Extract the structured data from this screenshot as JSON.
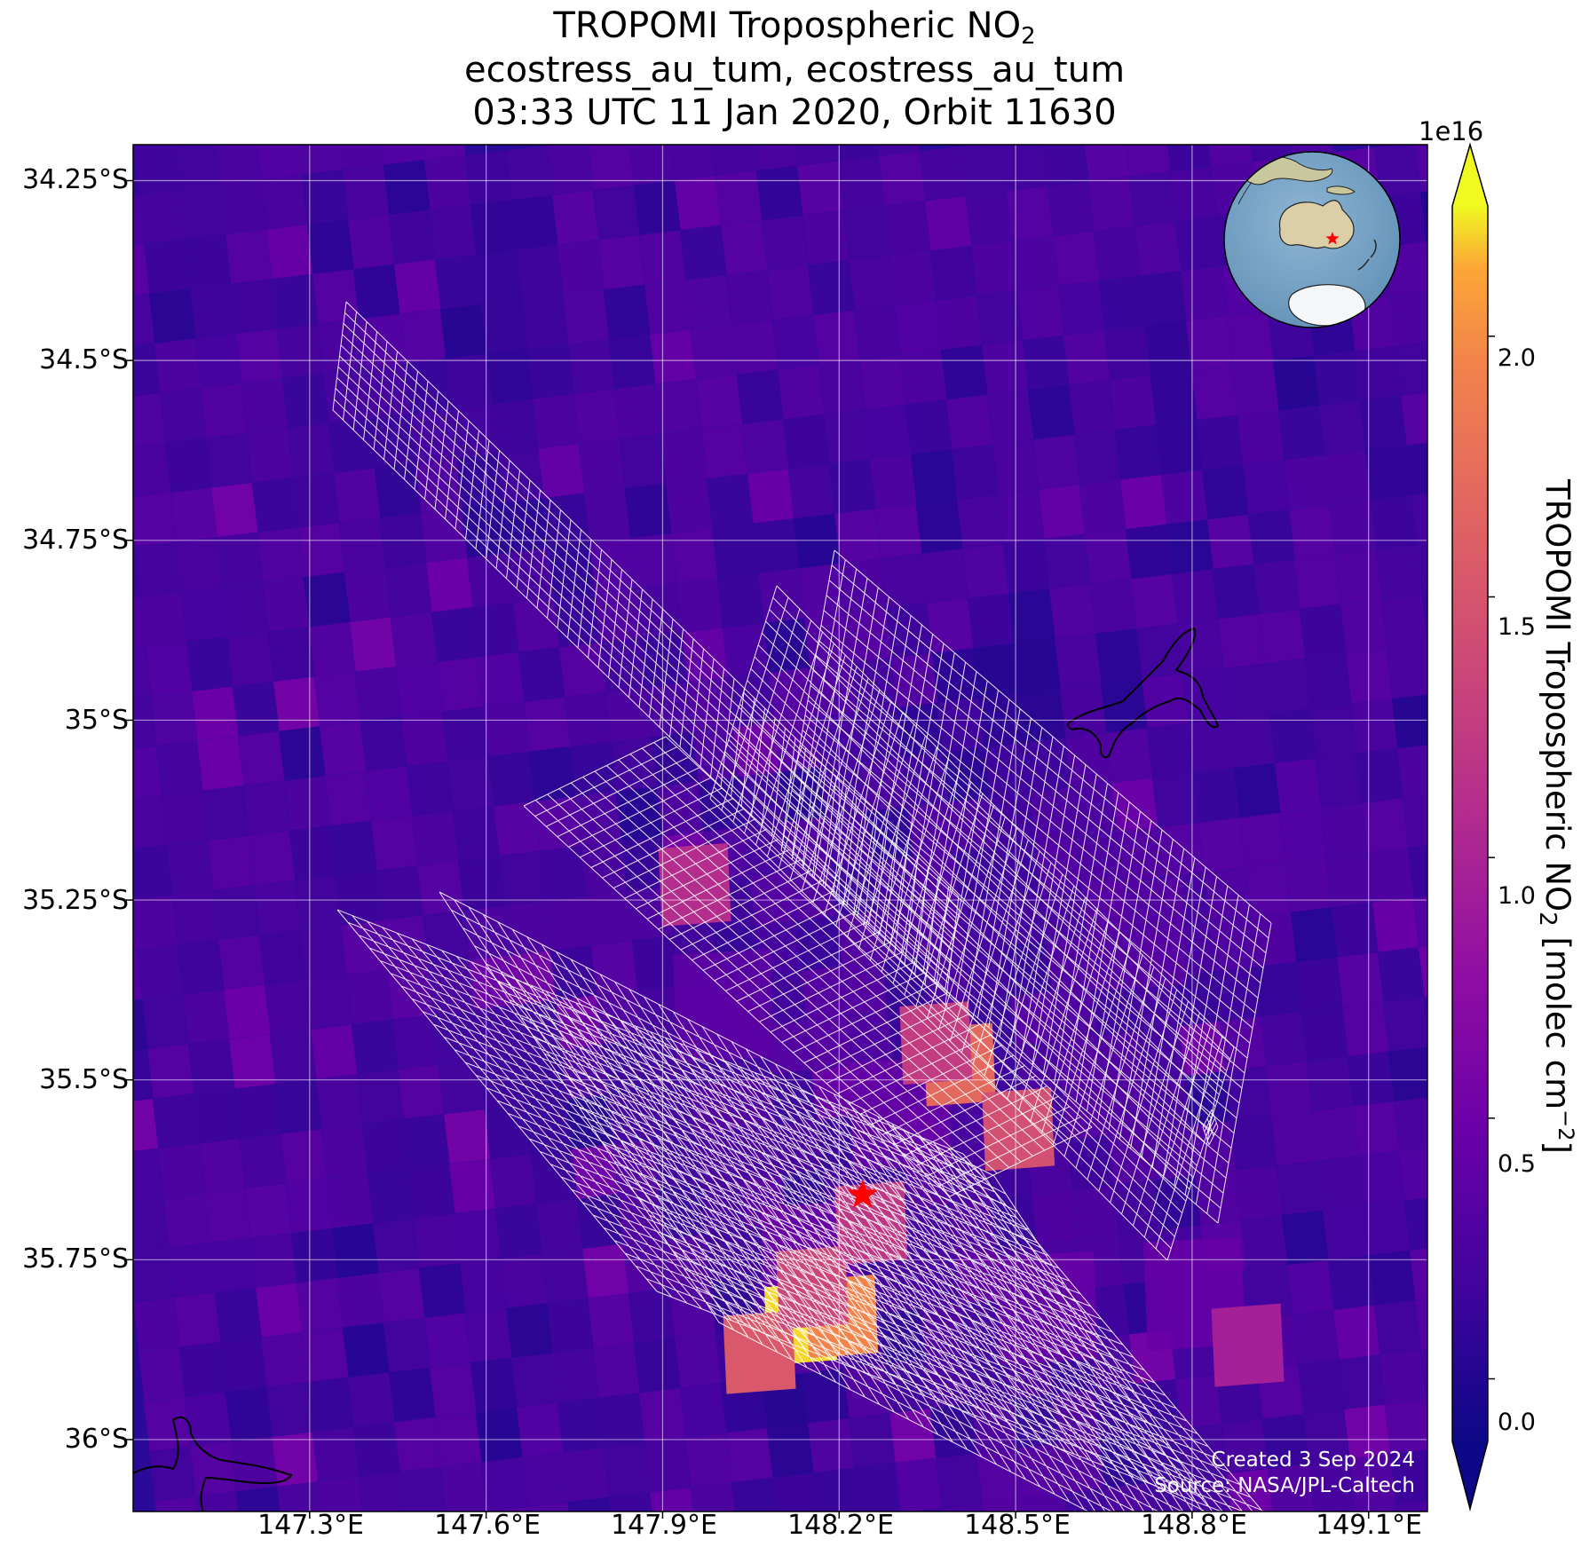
{
  "title": {
    "line1_prefix": "TROPOMI Tropospheric NO",
    "line1_sub": "2",
    "line2": "ecostress_au_tum, ecostress_au_tum",
    "line3": "03:33 UTC 11 Jan 2020, Orbit 11630"
  },
  "axes": {
    "lat_labels": [
      "34.25°S",
      "34.5°S",
      "34.75°S",
      "35°S",
      "35.25°S",
      "35.5°S",
      "35.75°S",
      "36°S"
    ],
    "lon_labels": [
      "147.3°E",
      "147.6°E",
      "147.9°E",
      "148.2°E",
      "148.5°E",
      "148.8°E",
      "149.1°E"
    ]
  },
  "colorbar": {
    "exponent": "1e16",
    "ticks": [
      "2.0",
      "1.5",
      "1.0",
      "0.5",
      "0.0"
    ],
    "label_prefix": "TROPOMI Tropospheric NO",
    "label_sub": "2",
    "label_mid": " [molec cm",
    "label_sup": "−2",
    "label_suffix": "]",
    "range": [
      -0.12,
      2.25
    ],
    "colormap": "plasma",
    "extend": "both"
  },
  "credits": {
    "created": "Created 3 Sep 2024",
    "source": "Source: NASA/JPL-Caltech"
  },
  "map": {
    "lat_range": [
      -36.1,
      -34.2
    ],
    "lon_range": [
      147.0,
      149.2
    ],
    "target_marker": {
      "lat": -35.66,
      "lon": 148.24,
      "color": "#ff0000",
      "symbol": "star"
    },
    "hotspots": [
      {
        "lat": -35.84,
        "lon": 148.13,
        "value": 2.2
      },
      {
        "lat": -35.83,
        "lon": 148.2,
        "value": 1.95
      },
      {
        "lat": -35.88,
        "lon": 148.06,
        "value": 1.55
      },
      {
        "lat": -35.79,
        "lon": 148.15,
        "value": 1.35
      },
      {
        "lat": -35.7,
        "lon": 148.25,
        "value": 1.2
      },
      {
        "lat": -35.48,
        "lon": 148.4,
        "value": 1.7
      },
      {
        "lat": -35.57,
        "lon": 148.5,
        "value": 1.45
      },
      {
        "lat": -35.45,
        "lon": 148.36,
        "value": 1.25
      },
      {
        "lat": -35.23,
        "lon": 147.95,
        "value": 1.1
      },
      {
        "lat": -35.87,
        "lon": 148.89,
        "value": 0.95
      }
    ],
    "inset": {
      "content": "globe-australia",
      "marker_color": "#ff0000"
    }
  }
}
